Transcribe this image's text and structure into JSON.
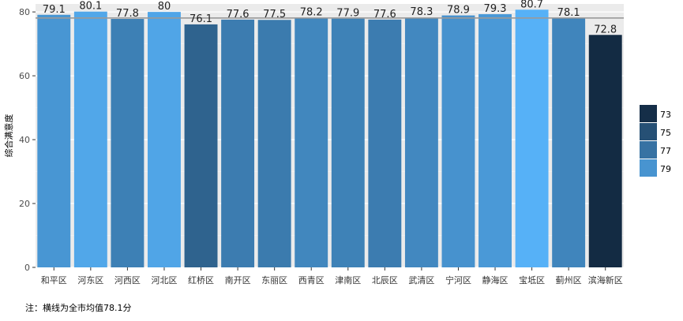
{
  "chart_data": {
    "type": "bar",
    "ylabel": "综合满意度",
    "ylim": [
      0,
      82.5
    ],
    "yticks": [
      0,
      20,
      40,
      60,
      80
    ],
    "grid": true,
    "legend_position": "right",
    "categories": [
      "和平区",
      "河东区",
      "河西区",
      "河北区",
      "红桥区",
      "南开区",
      "东丽区",
      "西青区",
      "津南区",
      "北辰区",
      "武清区",
      "宁河区",
      "静海区",
      "宝坻区",
      "蓟州区",
      "滨海新区"
    ],
    "values": [
      79.1,
      80.1,
      77.8,
      80,
      76.1,
      77.6,
      77.5,
      78.2,
      77.9,
      77.6,
      78.3,
      78.9,
      79.3,
      80.7,
      78.1,
      72.8
    ],
    "data_labels": [
      "79.1",
      "80.1",
      "77.8",
      "80",
      "76.1",
      "77.6",
      "77.5",
      "78.2",
      "77.9",
      "77.6",
      "78.3",
      "78.9",
      "79.3",
      "80.7",
      "78.1",
      "72.8"
    ],
    "reference_line": 78.1,
    "color_scale": {
      "low": "#132B43",
      "high": "#56B1F7",
      "min": 72.8,
      "max": 80.7
    },
    "legend": [
      {
        "label": "73",
        "value": 73
      },
      {
        "label": "75",
        "value": 75
      },
      {
        "label": "77",
        "value": 77
      },
      {
        "label": "79",
        "value": 79
      }
    ]
  },
  "note": "注：横线为全市均值78.1分"
}
